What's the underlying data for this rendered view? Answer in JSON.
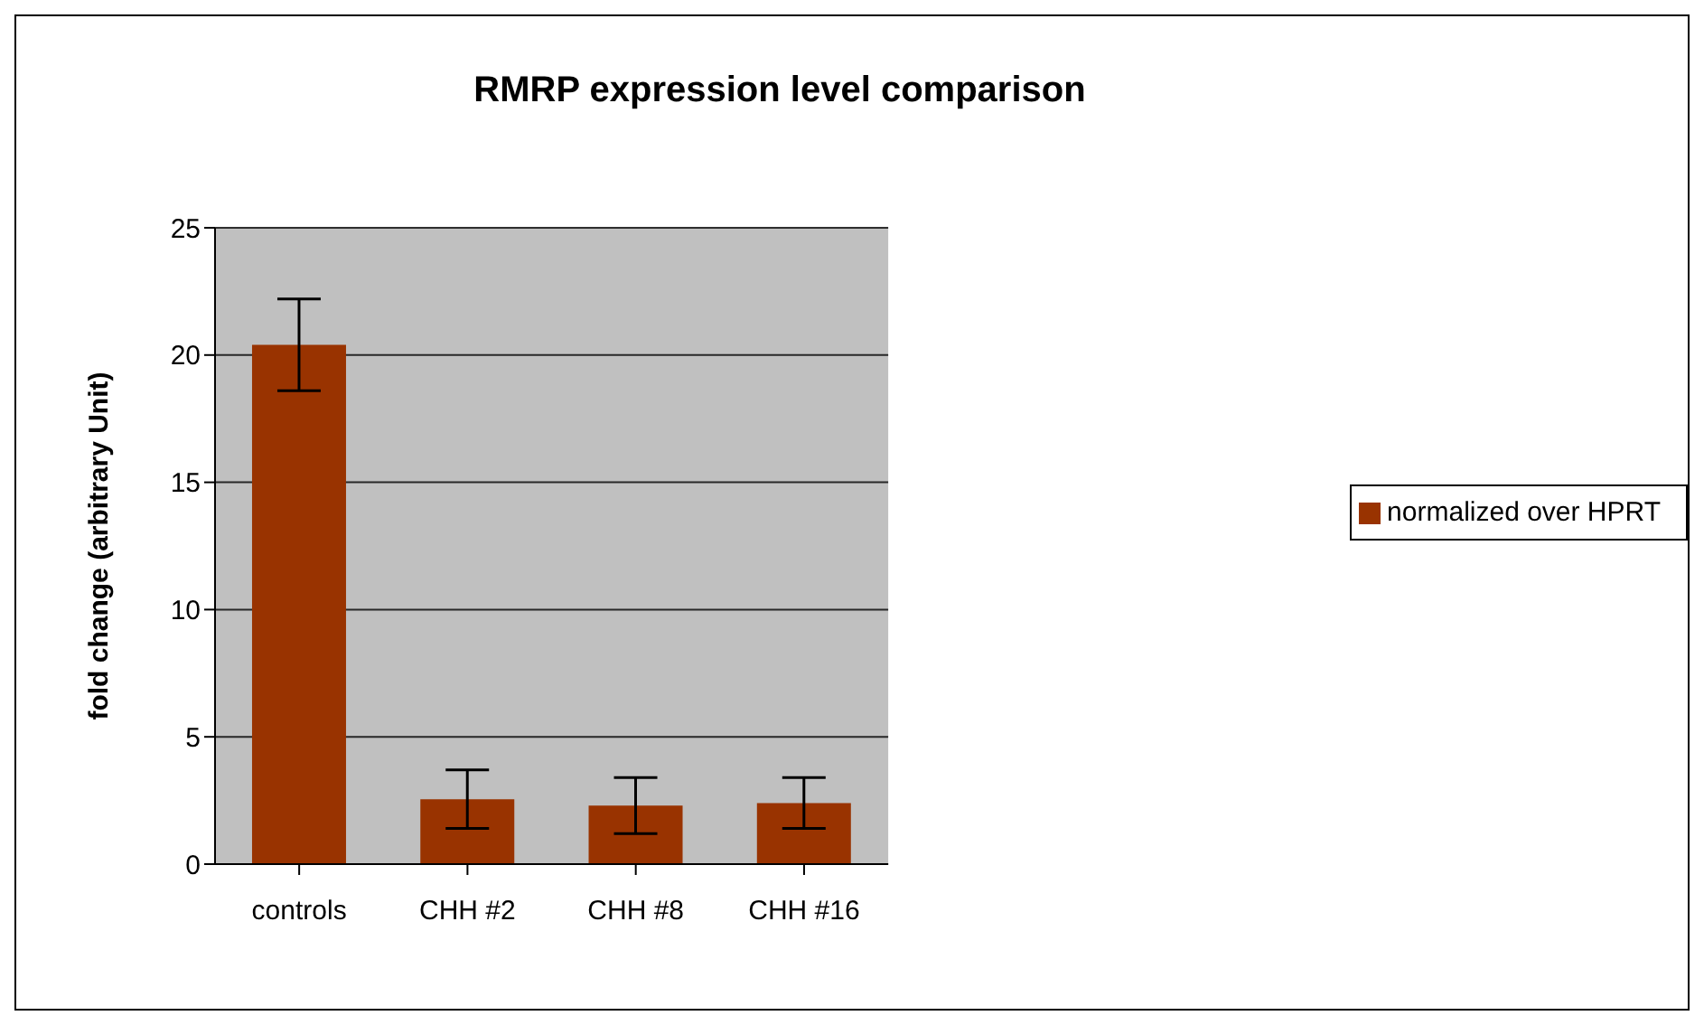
{
  "chart_data": {
    "type": "bar",
    "title": "RMRP expression level comparison",
    "ylabel": "fold change (arbitrary Unit)",
    "categories": [
      "controls",
      "CHH #2",
      "CHH #8",
      "CHH #16"
    ],
    "series": [
      {
        "name": "normalized over HPRT",
        "color": "#993300",
        "values": [
          20.4,
          2.55,
          2.3,
          2.4
        ],
        "errors": [
          [
            18.6,
            22.2
          ],
          [
            1.4,
            3.7
          ],
          [
            1.2,
            3.4
          ],
          [
            1.4,
            3.4
          ]
        ]
      }
    ],
    "ylim": [
      0,
      25
    ],
    "yticks": [
      0,
      5,
      10,
      15,
      20,
      25
    ],
    "grid": "y",
    "legend": "right"
  }
}
